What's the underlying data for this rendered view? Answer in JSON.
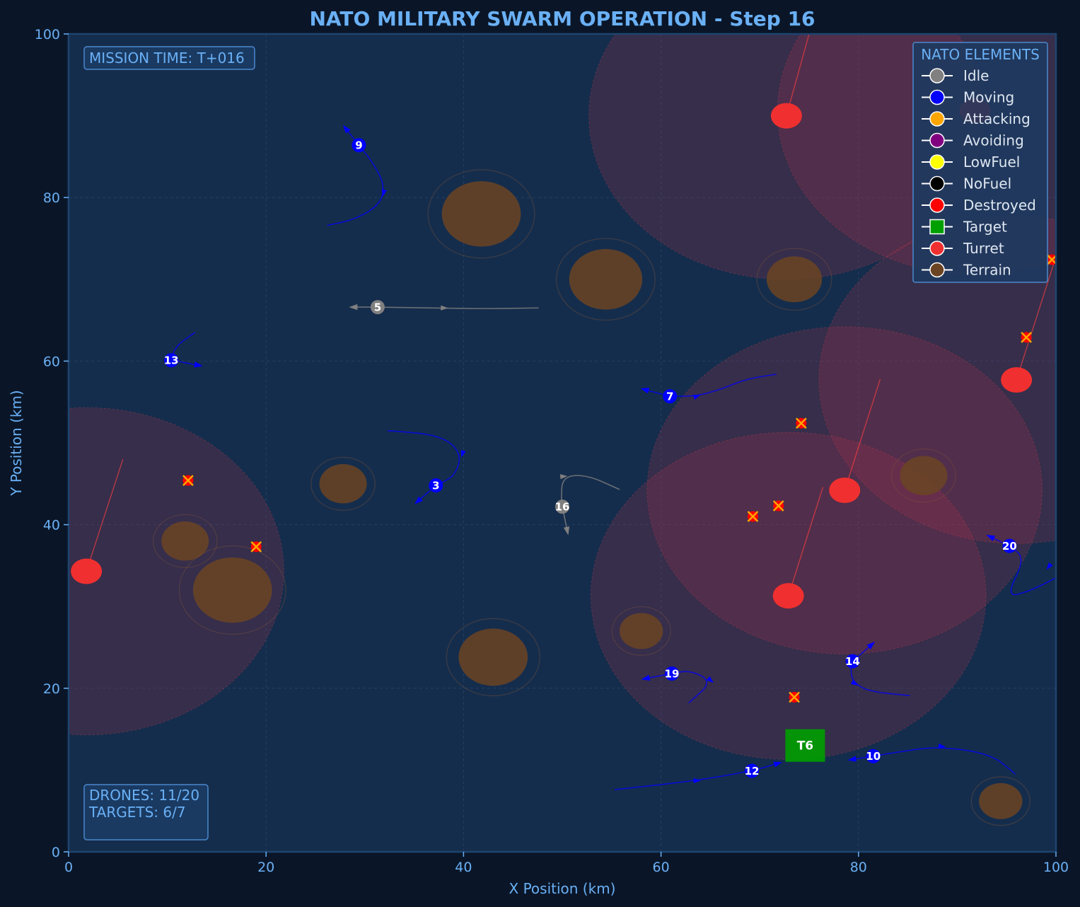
{
  "colors": {
    "background": "#0a1628",
    "plot_bg": "#152d4c",
    "accent": "#6ab0f5",
    "idle": "#808080",
    "moving": "#0000ff",
    "attacking": "#ffa500",
    "avoiding": "#800080",
    "lowfuel": "#ffff00",
    "nofuel": "#000000",
    "destroyed": "#ff0000",
    "target": "#00a000",
    "turret": "#f03030",
    "terrain": "#6b4423"
  },
  "chart_data": {
    "type": "scatter",
    "title": "NATO MILITARY SWARM OPERATION - Step 16",
    "xlabel": "X Position (km)",
    "ylabel": "Y Position (km)",
    "xlim": [
      0,
      100
    ],
    "ylim": [
      0,
      100
    ],
    "xticks": [
      "0",
      "20",
      "40",
      "60",
      "80",
      "100"
    ],
    "yticks": [
      "0",
      "20",
      "40",
      "60",
      "80",
      "100"
    ],
    "grid": true,
    "mission_time": "MISSION TIME: T+016",
    "stats": [
      "DRONES: 11/20",
      "TARGETS: 6/7"
    ],
    "legend": {
      "title": "NATO ELEMENTS",
      "position": "top-right",
      "items": [
        {
          "label": "Idle",
          "marker": "circle",
          "color": "#808080"
        },
        {
          "label": "Moving",
          "marker": "circle",
          "color": "#0000ff"
        },
        {
          "label": "Attacking",
          "marker": "circle",
          "color": "#ffa500"
        },
        {
          "label": "Avoiding",
          "marker": "circle",
          "color": "#800080"
        },
        {
          "label": "LowFuel",
          "marker": "circle",
          "color": "#ffff00"
        },
        {
          "label": "NoFuel",
          "marker": "circle",
          "color": "#000000"
        },
        {
          "label": "Destroyed",
          "marker": "circle",
          "color": "#ff0000"
        },
        {
          "label": "Target",
          "marker": "square",
          "color": "#00a000"
        },
        {
          "label": "Turret",
          "marker": "circle",
          "color": "#f03030"
        },
        {
          "label": "Terrain",
          "marker": "circle",
          "color": "#6b4423"
        }
      ]
    },
    "terrain": [
      {
        "x": 41.8,
        "y": 78.0,
        "r": 4.0
      },
      {
        "x": 54.4,
        "y": 70.0,
        "r": 3.7
      },
      {
        "x": 73.5,
        "y": 70.0,
        "r": 2.8
      },
      {
        "x": 27.8,
        "y": 45.0,
        "r": 2.4
      },
      {
        "x": 11.8,
        "y": 38.0,
        "r": 2.4
      },
      {
        "x": 16.6,
        "y": 32.0,
        "r": 4.0
      },
      {
        "x": 43.0,
        "y": 23.8,
        "r": 3.5
      },
      {
        "x": 58.0,
        "y": 27.0,
        "r": 2.2
      },
      {
        "x": 86.6,
        "y": 46.0,
        "r": 2.4
      },
      {
        "x": 94.4,
        "y": 6.2,
        "r": 2.2
      }
    ],
    "turrets": [
      {
        "x": 1.8,
        "y": 34.3,
        "range": 20.0
      },
      {
        "x": 72.7,
        "y": 90.0,
        "range": 20.0
      },
      {
        "x": 96.0,
        "y": 57.7,
        "range": 20.0
      },
      {
        "x": 78.6,
        "y": 44.2,
        "range": 20.0
      },
      {
        "x": 72.9,
        "y": 31.3,
        "range": 20.0
      },
      {
        "x": 91.8,
        "y": 90.6,
        "range": 20.0
      }
    ],
    "turret_beams": [
      {
        "x1": 1.8,
        "y1": 34.3,
        "x2": 5.5,
        "y2": 48.0
      },
      {
        "x1": 72.7,
        "y1": 90.0,
        "x2": 75.0,
        "y2": 100.0
      },
      {
        "x1": 96.0,
        "y1": 57.7,
        "x2": 99.8,
        "y2": 72.0
      },
      {
        "x1": 78.6,
        "y1": 44.2,
        "x2": 82.2,
        "y2": 57.8
      },
      {
        "x1": 72.9,
        "y1": 31.3,
        "x2": 76.4,
        "y2": 44.6
      }
    ],
    "destroyed": [
      {
        "x": 12.1,
        "y": 45.4
      },
      {
        "x": 19.0,
        "y": 37.3
      },
      {
        "x": 74.2,
        "y": 52.4
      },
      {
        "x": 69.3,
        "y": 41.0
      },
      {
        "x": 71.9,
        "y": 42.3
      },
      {
        "x": 73.5,
        "y": 18.9
      },
      {
        "x": 97.0,
        "y": 62.9
      },
      {
        "x": 99.6,
        "y": 72.4
      }
    ],
    "targets": [
      {
        "label": "T6",
        "x": 74.6,
        "y": 13.0
      }
    ],
    "drones": [
      {
        "id": "9",
        "state": "Moving",
        "x": 29.4,
        "y": 86.4,
        "trail": [
          [
            26.2,
            76.6
          ],
          [
            29.0,
            77.3
          ],
          [
            31.6,
            79.2
          ],
          [
            32.0,
            81.6
          ],
          [
            30.8,
            84.3
          ],
          [
            29.4,
            86.4
          ],
          [
            28.1,
            88.4
          ]
        ],
        "arrows": [
          [
            31.9,
            80.6,
            1
          ]
        ],
        "head": [
          28.1,
          88.4
        ]
      },
      {
        "id": "5",
        "state": "Idle",
        "x": 31.3,
        "y": 66.6,
        "trail": [
          [
            47.6,
            66.5
          ],
          [
            42.0,
            66.4
          ],
          [
            37.0,
            66.5
          ],
          [
            31.3,
            66.6
          ],
          [
            28.9,
            66.6
          ]
        ],
        "arrows": [
          [
            38.0,
            66.5,
            0
          ]
        ],
        "head": [
          28.9,
          66.6
        ]
      },
      {
        "id": "13",
        "state": "Moving",
        "x": 10.4,
        "y": 60.1,
        "trail": [
          [
            12.8,
            63.5
          ],
          [
            10.8,
            61.8
          ],
          [
            10.4,
            60.1
          ],
          [
            13.1,
            59.5
          ]
        ],
        "arrows": [],
        "head": [
          13.1,
          59.5
        ]
      },
      {
        "id": "7",
        "state": "Moving",
        "x": 60.9,
        "y": 55.7,
        "trail": [
          [
            71.7,
            58.4
          ],
          [
            68.6,
            57.8
          ],
          [
            66.2,
            56.6
          ],
          [
            63.6,
            55.7
          ],
          [
            60.9,
            55.7
          ],
          [
            58.4,
            56.5
          ]
        ],
        "arrows": [
          [
            63.6,
            55.7,
            0
          ]
        ],
        "head": [
          58.4,
          56.5
        ]
      },
      {
        "id": "3",
        "state": "Moving",
        "x": 37.2,
        "y": 44.8,
        "trail": [
          [
            32.3,
            51.5
          ],
          [
            37.5,
            51.0
          ],
          [
            39.8,
            48.9
          ],
          [
            39.2,
            46.0
          ],
          [
            37.2,
            44.8
          ],
          [
            35.4,
            42.9
          ]
        ],
        "arrows": [
          [
            39.9,
            48.7,
            2
          ]
        ],
        "head": [
          35.4,
          42.9
        ]
      },
      {
        "id": "16",
        "state": "Idle",
        "x": 50.0,
        "y": 42.2,
        "trail": [
          [
            55.8,
            44.3
          ],
          [
            52.5,
            46.1
          ],
          [
            50.0,
            45.9
          ],
          [
            49.9,
            43.0
          ],
          [
            50.0,
            42.2
          ],
          [
            50.5,
            39.3
          ]
        ],
        "arrows": [
          [
            50.1,
            45.9,
            0
          ]
        ],
        "head": [
          50.5,
          39.3
        ]
      },
      {
        "id": "20",
        "state": "Moving",
        "x": 95.3,
        "y": 37.4,
        "trail": [
          [
            100.0,
            33.5
          ],
          [
            97.4,
            31.9
          ],
          [
            94.9,
            31.1
          ],
          [
            96.9,
            35.9
          ],
          [
            95.3,
            37.4
          ],
          [
            93.4,
            38.5
          ]
        ],
        "arrows": [
          [
            99.3,
            34.9,
            0
          ]
        ],
        "head": [
          93.4,
          38.5
        ]
      },
      {
        "id": "19",
        "state": "Moving",
        "x": 61.1,
        "y": 21.8,
        "trail": [
          [
            62.8,
            18.2
          ],
          [
            65.2,
            20.8
          ],
          [
            63.0,
            22.2
          ],
          [
            61.1,
            21.8
          ],
          [
            58.5,
            21.2
          ]
        ],
        "arrows": [
          [
            65.0,
            21.0,
            0
          ]
        ],
        "head": [
          58.5,
          21.2
        ]
      },
      {
        "id": "14",
        "state": "Moving",
        "x": 79.4,
        "y": 23.3,
        "trail": [
          [
            85.2,
            19.1
          ],
          [
            81.0,
            19.6
          ],
          [
            79.4,
            20.8
          ],
          [
            79.2,
            22.4
          ],
          [
            79.4,
            23.3
          ],
          [
            81.3,
            25.3
          ]
        ],
        "arrows": [
          [
            79.6,
            20.6,
            0
          ]
        ],
        "head": [
          81.3,
          25.3
        ]
      },
      {
        "id": "10",
        "state": "Moving",
        "x": 81.5,
        "y": 11.7,
        "trail": [
          [
            95.9,
            9.5
          ],
          [
            93.4,
            12.0
          ],
          [
            88.0,
            12.9
          ],
          [
            84.0,
            12.2
          ],
          [
            81.5,
            11.7
          ],
          [
            79.4,
            11.3
          ]
        ],
        "arrows": [
          [
            88.4,
            12.9,
            0
          ]
        ],
        "head": [
          79.4,
          11.3
        ]
      },
      {
        "id": "12",
        "state": "Moving",
        "x": 69.2,
        "y": 9.9,
        "trail": [
          [
            55.3,
            7.6
          ],
          [
            63.6,
            8.7
          ],
          [
            69.2,
            9.9
          ],
          [
            71.8,
            10.8
          ]
        ],
        "arrows": [
          [
            63.6,
            8.7,
            0
          ]
        ],
        "head": [
          71.8,
          10.8
        ]
      }
    ]
  }
}
